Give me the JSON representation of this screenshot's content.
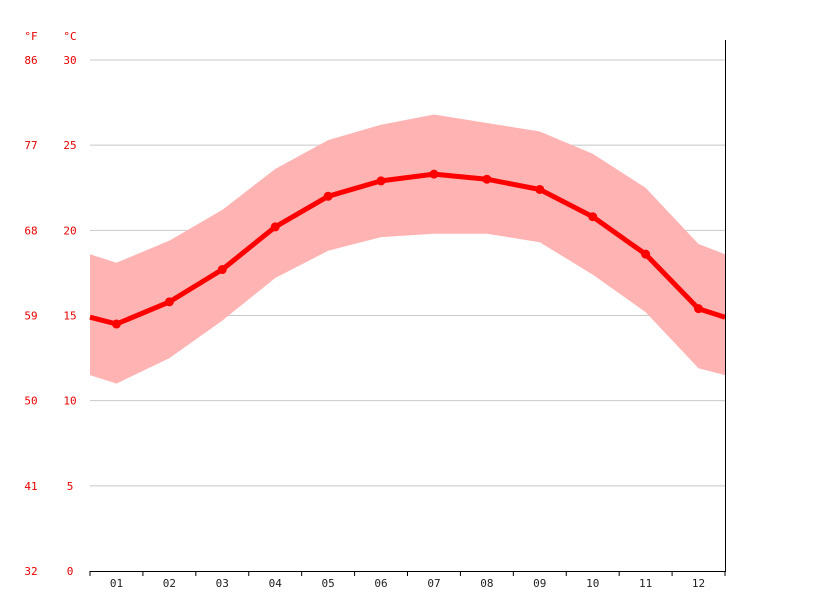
{
  "colors": {
    "line": "#ff0000",
    "band": "#ffb3b3",
    "axis_text": "#e60000",
    "month_text": "#222222",
    "grid": "#c8c8c8",
    "axis_line": "#000000"
  },
  "chart_data": {
    "type": "line",
    "title": "",
    "xlabel": "",
    "ylabel": "",
    "unit_f": "°F",
    "unit_c": "°C",
    "ylim": [
      0,
      30
    ],
    "y_ticks_c": [
      "30",
      "25",
      "20",
      "15",
      "10",
      "5",
      "0"
    ],
    "y_ticks_f": [
      "86",
      "77",
      "68",
      "59",
      "50",
      "41",
      "32"
    ],
    "categories": [
      "01",
      "02",
      "03",
      "04",
      "05",
      "06",
      "07",
      "08",
      "09",
      "10",
      "11",
      "12"
    ],
    "series": [
      {
        "name": "",
        "values": [
          14.5,
          15.8,
          17.7,
          20.2,
          22.0,
          22.9,
          23.3,
          23.0,
          22.4,
          20.8,
          18.6,
          15.4
        ]
      }
    ],
    "band": {
      "upper": [
        18.1,
        19.4,
        21.2,
        23.6,
        25.3,
        26.2,
        26.8,
        26.3,
        25.8,
        24.5,
        22.5,
        19.2
      ],
      "lower": [
        11.0,
        12.5,
        14.7,
        17.2,
        18.8,
        19.6,
        19.8,
        19.8,
        19.3,
        17.4,
        15.2,
        11.9
      ]
    },
    "edge_values": {
      "start": {
        "value": 14.9,
        "upper": 18.6,
        "lower": 11.5
      },
      "end": {
        "value": 14.9,
        "upper": 18.6,
        "lower": 11.5
      }
    },
    "grid": true,
    "legend": "none"
  }
}
